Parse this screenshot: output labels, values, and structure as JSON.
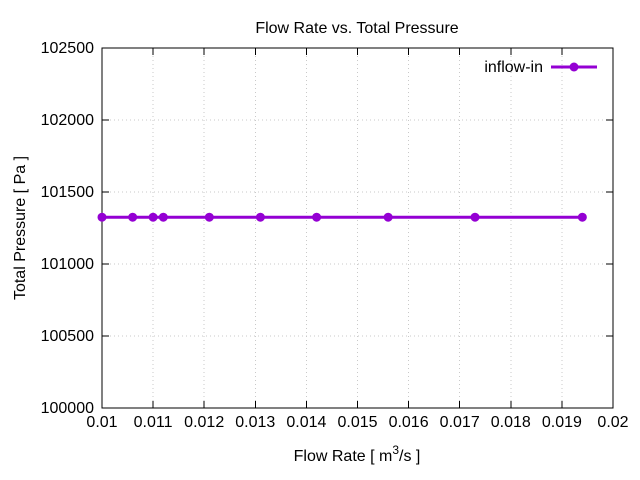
{
  "colors": {
    "background": "#ffffff",
    "axis": "#000000",
    "grid": "#c9c9c9",
    "text": "#000000",
    "series": "#9400d3"
  },
  "chart_data": {
    "type": "line",
    "title": "Flow Rate vs. Total Pressure",
    "xlabel": {
      "prefix": "Flow Rate [ m",
      "sup": "3",
      "suffix": "/s ]"
    },
    "ylabel": "Total Pressure [ Pa ]",
    "xlim": [
      0.01,
      0.02
    ],
    "ylim": [
      100000,
      102500
    ],
    "grid": "dotted",
    "xtick_values": [
      0.01,
      0.011,
      0.012,
      0.013,
      0.014,
      0.015,
      0.016,
      0.017,
      0.018,
      0.019,
      0.02
    ],
    "xtick_labels": [
      "0.01",
      "0.011",
      "0.012",
      "0.013",
      "0.014",
      "0.015",
      "0.016",
      "0.017",
      "0.018",
      "0.019",
      "0.02"
    ],
    "ytick_values": [
      100000,
      100500,
      101000,
      101500,
      102000,
      102500
    ],
    "ytick_labels": [
      "100000",
      "100500",
      "101000",
      "101500",
      "102000",
      "102500"
    ],
    "legend": {
      "position": "top-right-inside"
    },
    "series": [
      {
        "name": "inflow-in",
        "color": "#9400d3",
        "marker": "circle",
        "points": [
          [
            0.01,
            101325
          ],
          [
            0.0106,
            101325
          ],
          [
            0.011,
            101325
          ],
          [
            0.0112,
            101325
          ],
          [
            0.0121,
            101325
          ],
          [
            0.0131,
            101325
          ],
          [
            0.0142,
            101325
          ],
          [
            0.0156,
            101325
          ],
          [
            0.0173,
            101325
          ],
          [
            0.0194,
            101325
          ]
        ]
      }
    ]
  }
}
